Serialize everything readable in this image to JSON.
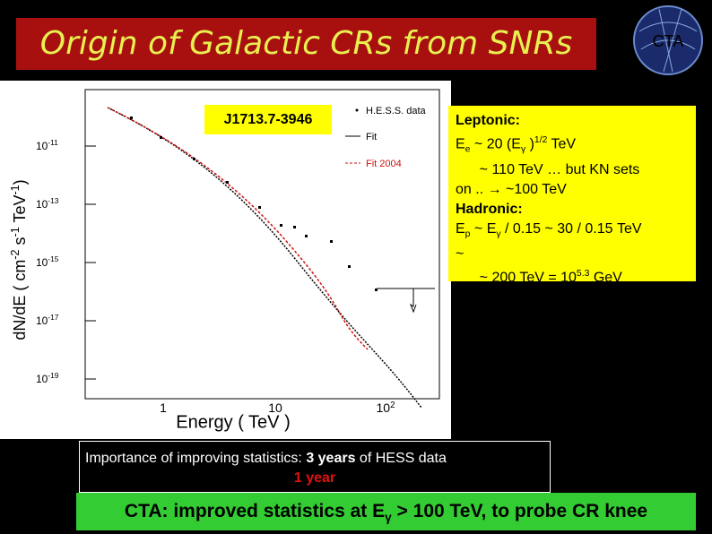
{
  "title": "Origin of Galactic CRs from SNRs",
  "logo": "CTA",
  "plot": {
    "source_label": "J1713.7-3946",
    "legend": [
      "H.E.S.S. data",
      "Fit",
      "Fit 2004"
    ],
    "y_axis_label": [
      {
        "t": "dN/dE ( cm"
      },
      {
        "t": "-2",
        "style": "sup"
      },
      {
        "t": " s"
      },
      {
        "t": "-1",
        "style": "sup"
      },
      {
        "t": " TeV"
      },
      {
        "t": "-1",
        "style": "sup"
      },
      {
        "t": ")"
      }
    ],
    "y_ticks": [
      [
        {
          "t": "10"
        },
        {
          "t": "-11",
          "style": "sup"
        }
      ],
      [
        {
          "t": "10"
        },
        {
          "t": "-13",
          "style": "sup"
        }
      ],
      [
        {
          "t": "10"
        },
        {
          "t": "-15",
          "style": "sup"
        }
      ],
      [
        {
          "t": "10"
        },
        {
          "t": "-17",
          "style": "sup"
        }
      ],
      [
        {
          "t": "10"
        },
        {
          "t": "-19",
          "style": "sup"
        }
      ]
    ],
    "x_ticks": [
      [
        {
          "t": "1"
        }
      ],
      [
        {
          "t": "10"
        }
      ],
      [
        {
          "t": "10"
        },
        {
          "t": "2",
          "style": "sup"
        }
      ]
    ],
    "x_axis_label": "Energy ( TeV )"
  },
  "notes": [
    [
      {
        "t": "Leptonic:",
        "style": "b"
      }
    ],
    [
      {
        "t": "E"
      },
      {
        "t": "e",
        "style": "sub"
      },
      {
        "t": " ~ 20 (E"
      },
      {
        "t": "γ",
        "style": "sub"
      },
      {
        "t": " )"
      },
      {
        "t": "1/2",
        "style": "sup"
      },
      {
        "t": " TeV"
      }
    ],
    [
      {
        "t": "      ~ 110 TeV … but KN sets"
      }
    ],
    [
      {
        "t": "on .. → ~100 TeV"
      }
    ],
    [
      {
        "t": "Hadronic:",
        "style": "b"
      }
    ],
    [
      {
        "t": "E"
      },
      {
        "t": "p",
        "style": "sub"
      },
      {
        "t": " ~ E"
      },
      {
        "t": "γ",
        "style": "sub"
      },
      {
        "t": " / 0.15 ~ 30 / 0.15 TeV"
      }
    ],
    [
      {
        "t": "~"
      }
    ],
    [
      {
        "t": "      ~ 200 TeV = 10"
      },
      {
        "t": "5.3",
        "style": "sup"
      },
      {
        "t": " GeV"
      }
    ]
  ],
  "statistics": [
    [
      {
        "t": "Importance of improving statistics: "
      },
      {
        "t": "3 years",
        "style": "b"
      },
      {
        "t": " of HESS data"
      }
    ],
    [
      {
        "t": "1 year",
        "style": "red"
      }
    ]
  ],
  "conclusion": [
    {
      "t": "CTA: improved statistics at E"
    },
    {
      "t": "γ",
      "style": "sub"
    },
    {
      "t": " > 100 TeV, to probe CR knee"
    }
  ]
}
